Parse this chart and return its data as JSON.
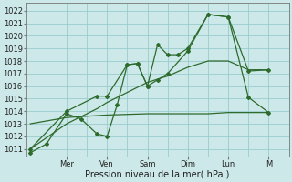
{
  "xlabel": "Pression niveau de la mer( hPa )",
  "bg_color": "#cce8e8",
  "grid_color": "#99cccc",
  "line_color": "#2d6b2d",
  "ylim": [
    1010.4,
    1022.6
  ],
  "yticks": [
    1011,
    1012,
    1013,
    1014,
    1015,
    1016,
    1017,
    1018,
    1019,
    1020,
    1021,
    1022
  ],
  "day_positions": [
    2,
    4,
    6,
    8,
    10,
    12
  ],
  "day_labels": [
    "Mer",
    "Ven",
    "Sam",
    "Dim",
    "Lun",
    "M"
  ],
  "xlim": [
    0,
    13
  ],
  "extra_vlines": [
    1,
    3,
    5,
    7,
    9,
    11
  ],
  "series_zigzag_x": [
    0.2,
    1.0,
    2.0,
    2.7,
    3.5,
    4.0,
    4.5,
    5.0,
    5.5,
    6.0,
    6.5,
    7.0,
    7.5,
    8.0,
    9.0,
    10.0,
    11.0,
    12.0
  ],
  "series_zigzag_y": [
    1010.7,
    1011.4,
    1013.8,
    1013.4,
    1012.2,
    1012.0,
    1014.5,
    1017.7,
    1017.8,
    1016.0,
    1019.3,
    1018.5,
    1018.5,
    1019.0,
    1021.7,
    1021.5,
    1017.2,
    1017.3
  ],
  "series_flat_x": [
    0.2,
    2.0,
    4.0,
    6.0,
    8.0,
    9.0,
    10.0,
    12.0
  ],
  "series_flat_y": [
    1013.0,
    1013.5,
    1013.7,
    1013.8,
    1013.8,
    1013.8,
    1013.9,
    1013.9
  ],
  "series_smooth_x": [
    0.2,
    2.0,
    3.5,
    4.0,
    5.0,
    5.5,
    6.0,
    6.5,
    7.0,
    8.0,
    9.0,
    10.0,
    11.0,
    12.0
  ],
  "series_smooth_y": [
    1011.0,
    1014.0,
    1015.2,
    1015.2,
    1017.7,
    1017.8,
    1016.0,
    1016.5,
    1017.0,
    1018.8,
    1021.7,
    1021.5,
    1015.1,
    1013.9
  ],
  "series_trend_x": [
    0.2,
    2.0,
    3.5,
    4.0,
    5.0,
    6.0,
    7.0,
    8.0,
    9.0,
    10.0,
    11.0,
    12.0
  ],
  "series_trend_y": [
    1011.0,
    1013.0,
    1014.2,
    1014.7,
    1015.5,
    1016.3,
    1016.8,
    1017.5,
    1018.0,
    1018.0,
    1017.3,
    1017.3
  ]
}
